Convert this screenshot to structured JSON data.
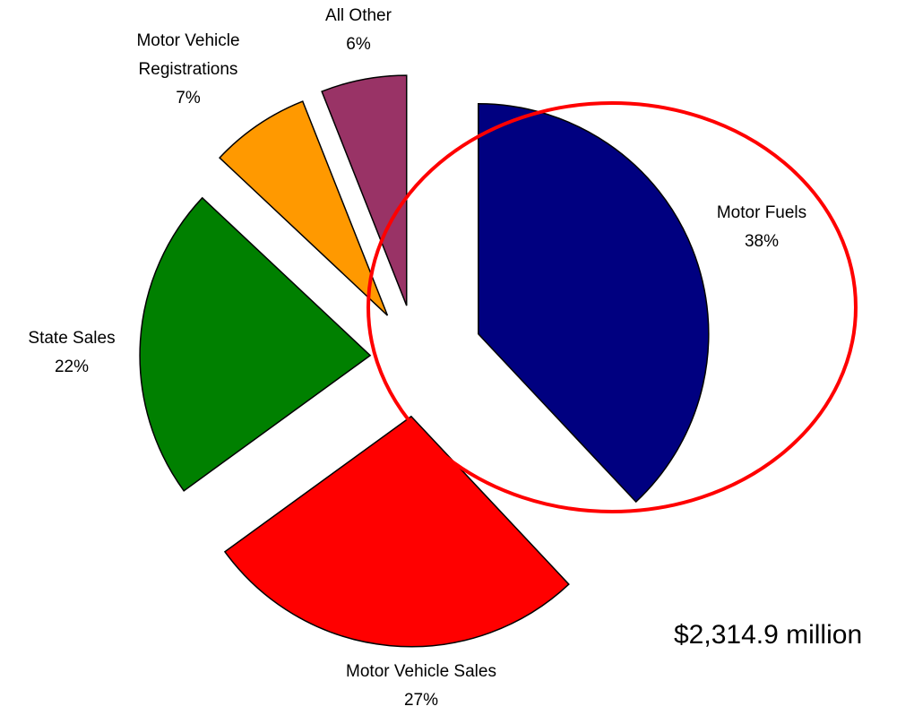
{
  "chart_data": {
    "type": "pie",
    "categories": [
      "Motor Fuels",
      "Motor Vehicle Sales",
      "State Sales",
      "Motor Vehicle Registrations",
      "All Other"
    ],
    "values": [
      38,
      27,
      22,
      7,
      6
    ],
    "value_labels": [
      "38%",
      "27%",
      "22%",
      "7%",
      "6%"
    ],
    "colors": [
      "#000080",
      "#ff0000",
      "#008000",
      "#ff9900",
      "#993366"
    ],
    "annotation": "$2,314.9 million"
  }
}
